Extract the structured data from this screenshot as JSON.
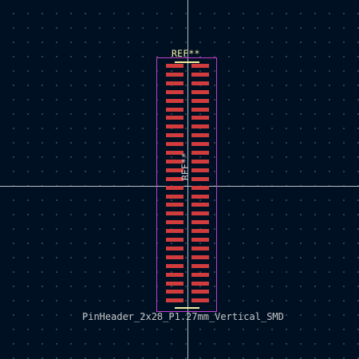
{
  "canvas": {
    "background_color": "#001023",
    "grid_dot_color": "#4a5666",
    "crosshair_color": "#b8bcc4",
    "courtyard_color": "#c23dd1",
    "silkscreen_color": "#f2eda1",
    "pad_color": "#d23c3c",
    "fab_text_color": "#c7c7c7"
  },
  "footprint": {
    "reference_silk": "REF**",
    "reference_fab": "REF**",
    "value_text": "PinHeader_2x28_P1.27mm_Vertical_SMD",
    "pad_rows": 28,
    "pad_columns": 2
  }
}
